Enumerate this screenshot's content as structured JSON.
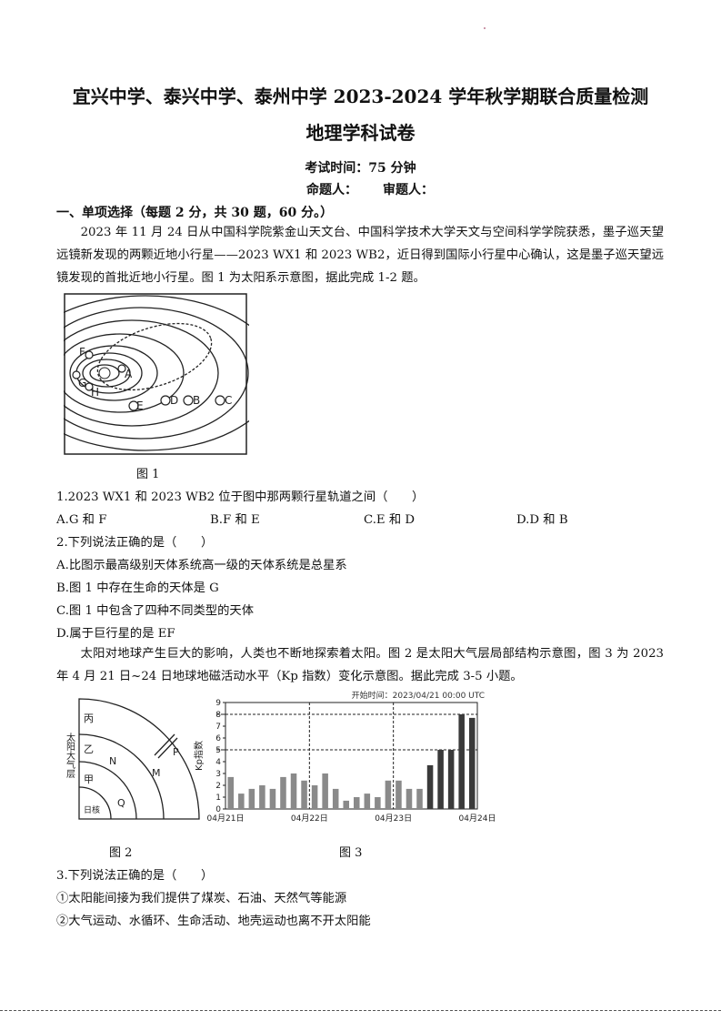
{
  "header": {
    "title": "宜兴中学、泰兴中学、泰州中学 2023-2024 学年秋学期联合质量检测",
    "subject": "地理学科试卷",
    "exam_time": "考试时间：75 分钟",
    "author_label": "命题人：",
    "reviewer_label": "审题人："
  },
  "section1": {
    "heading": "一、单项选择（每题 2 分，共 30 题，60 分。）",
    "intro1": "2023 年 11 月 24 日从中国科学院紫金山天文台、中国科学技术大学天文与空间科学学院获悉，墨子巡天望远镜新发现的两颗近地小行星——2023 WX1 和 2023 WB2，近日得到国际小行星中心确认，这是墨子巡天望远镜发现的首批近地小行星。图 1 为太阳系示意图，据此完成 1-2 题。",
    "fig1": {
      "caption": "图 1",
      "labels": [
        "F",
        "G",
        "H",
        "A",
        "E",
        "D",
        "B",
        "C"
      ]
    },
    "q1": {
      "stem": "1.2023 WX1 和 2023 WB2 位于图中那两颗行星轨道之间（　　）",
      "options": [
        "A.G 和 F",
        "B.F 和 E",
        "C.E 和 D",
        "D.D 和 B"
      ]
    },
    "q2": {
      "stem": "2.下列说法正确的是（　　）",
      "options": [
        "A.比图示最高级别天体系统高一级的天体系统是总星系",
        "B.图 1 中存在生命的天体是 G",
        "C.图 1 中包含了四种不同类型的天体",
        "D.属于巨行星的是 EF"
      ]
    },
    "intro2": "太阳对地球产生巨大的影响，人类也不断地探索着太阳。图 2 是太阳大气层局部结构示意图，图 3 为 2023 年 4 月 21 日~24 日地球地磁活动水平（Kp 指数）变化示意图。据此完成 3-5 小题。",
    "fig2": {
      "caption": "图 2",
      "side_label": "太阳大气层",
      "layers": [
        "丙",
        "乙",
        "甲",
        "日核"
      ],
      "markers": [
        "P",
        "N",
        "M",
        "Q"
      ]
    },
    "fig3": {
      "caption": "图 3"
    },
    "q3": {
      "stem": "3.下列说法正确的是（　　）",
      "options": [
        "①太阳能间接为我们提供了煤炭、石油、天然气等能源",
        "②大气运动、水循环、生命活动、地壳运动也离不开太阳能"
      ]
    }
  },
  "chart_data": {
    "type": "bar",
    "title": "开始时间：2023/04/21 00:00 UTC",
    "ylabel": "Kp指数",
    "xlabel": "",
    "ylim": [
      0,
      9
    ],
    "yticks": [
      "0",
      "1",
      "2",
      "3",
      "4",
      "5",
      "6",
      "7",
      "8",
      "9"
    ],
    "xticks": [
      "04月21日",
      "04月22日",
      "04月23日",
      "04月24日"
    ],
    "reference_lines": [
      5,
      8
    ],
    "values": [
      2.7,
      1.3,
      1.7,
      2.0,
      1.7,
      2.7,
      3.0,
      2.4,
      2.0,
      3.0,
      1.7,
      0.7,
      1.0,
      1.3,
      1.0,
      2.4,
      2.4,
      1.7,
      1.7,
      3.7,
      5.0,
      5.0,
      8.0,
      7.7
    ],
    "colors": {
      "normal": "#8a8a8a",
      "storm": "#3a3a3a"
    }
  }
}
